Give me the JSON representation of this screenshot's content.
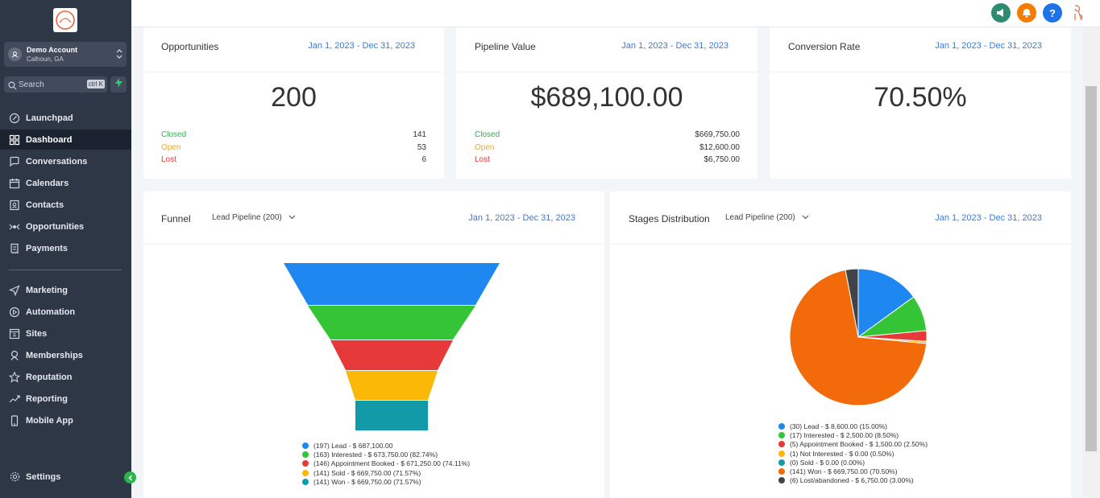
{
  "sidebar": {
    "account": {
      "name": "Demo Account",
      "location": "Calhoun, GA"
    },
    "search": {
      "placeholder": "Search",
      "shortcut": "ctrl K"
    },
    "items": [
      {
        "label": "Launchpad",
        "icon": "rocket-icon"
      },
      {
        "label": "Dashboard",
        "icon": "grid-icon",
        "active": true
      },
      {
        "label": "Conversations",
        "icon": "chat-icon"
      },
      {
        "label": "Calendars",
        "icon": "calendar-icon"
      },
      {
        "label": "Contacts",
        "icon": "contacts-icon"
      },
      {
        "label": "Opportunities",
        "icon": "funnel-icon"
      },
      {
        "label": "Payments",
        "icon": "receipt-icon"
      },
      {
        "label": "Marketing",
        "icon": "send-icon"
      },
      {
        "label": "Automation",
        "icon": "automation-icon"
      },
      {
        "label": "Sites",
        "icon": "sites-icon"
      },
      {
        "label": "Memberships",
        "icon": "memberships-icon"
      },
      {
        "label": "Reputation",
        "icon": "star-icon"
      },
      {
        "label": "Reporting",
        "icon": "trend-icon"
      },
      {
        "label": "Mobile App",
        "icon": "phone-icon"
      }
    ],
    "settings": "Settings"
  },
  "topbar": {
    "icons": [
      "megaphone-icon",
      "bell-icon",
      "help-icon",
      "user-avatar"
    ]
  },
  "colors": {
    "sidebar": "#2e3746",
    "accent_blue": "#3a7bd5",
    "green": "#2db34a",
    "orange": "#f5a623",
    "red": "#e53935"
  },
  "cards": {
    "opportunities": {
      "title": "Opportunities",
      "date": "Jan 1, 2023 - Dec 31, 2023",
      "value": "200",
      "rows": [
        {
          "label": "Closed",
          "value": "141"
        },
        {
          "label": "Open",
          "value": "53"
        },
        {
          "label": "Lost",
          "value": "6"
        }
      ]
    },
    "pipeline": {
      "title": "Pipeline Value",
      "date": "Jan 1, 2023 - Dec 31, 2023",
      "value": "$689,100.00",
      "rows": [
        {
          "label": "Closed",
          "value": "$669,750.00"
        },
        {
          "label": "Open",
          "value": "$12,600.00"
        },
        {
          "label": "Lost",
          "value": "$6,750.00"
        }
      ]
    },
    "conversion": {
      "title": "Conversion Rate",
      "date": "Jan 1, 2023 - Dec 31, 2023",
      "value": "70.50%"
    }
  },
  "funnel": {
    "title": "Funnel",
    "pipeline": "Lead Pipeline (200)",
    "date": "Jan 1, 2023 - Dec 31, 2023",
    "legend": [
      {
        "label": "(197) Lead - $ 687,100.00",
        "color": "#1e88f0"
      },
      {
        "label": "(163) Interested - $ 673,750.00 (82.74%)",
        "color": "#35c435"
      },
      {
        "label": "(146) Appointment Booked - $ 671,250.00 (74.11%)",
        "color": "#e63a3a"
      },
      {
        "label": "(141) Sold - $ 669,750.00 (71.57%)",
        "color": "#fbb806"
      },
      {
        "label": "(141) Won - $ 669,750.00 (71.57%)",
        "color": "#129aa8"
      }
    ]
  },
  "stages": {
    "title": "Stages Distribution",
    "pipeline": "Lead Pipeline (200)",
    "date": "Jan 1, 2023 - Dec 31, 2023",
    "legend": [
      {
        "label": "(30) Lead - $ 8,600.00 (15.00%)",
        "color": "#1e88f0"
      },
      {
        "label": "(17) Interested - $ 2,500.00 (8.50%)",
        "color": "#35c435"
      },
      {
        "label": "(5) Appointment Booked - $ 1,500.00 (2.50%)",
        "color": "#e63a3a"
      },
      {
        "label": "(1) Not Interested - $ 0.00 (0.50%)",
        "color": "#fbb806"
      },
      {
        "label": "(0) Sold - $ 0.00 (0.00%)",
        "color": "#129aa8"
      },
      {
        "label": "(141) Won - $ 669,750.00 (70.50%)",
        "color": "#f36a0a"
      },
      {
        "label": "(6) Lost/abandoned - $ 6,750.00 (3.00%)",
        "color": "#404448"
      }
    ]
  },
  "chart_data": [
    {
      "type": "funnel",
      "categories": [
        "Lead",
        "Interested",
        "Appointment Booked",
        "Sold",
        "Won"
      ],
      "values": [
        197,
        163,
        146,
        141,
        141
      ]
    },
    {
      "type": "pie",
      "categories": [
        "Lead",
        "Interested",
        "Appointment Booked",
        "Not Interested",
        "Sold",
        "Won",
        "Lost/abandoned"
      ],
      "values": [
        15.0,
        8.5,
        2.5,
        0.5,
        0.0,
        70.5,
        3.0
      ]
    }
  ]
}
